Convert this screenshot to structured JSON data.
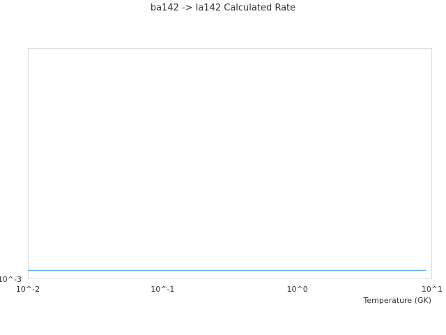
{
  "chart_data": {
    "type": "line",
    "title": "ba142 -> la142 Calculated Rate",
    "xlabel": "Temperature (GK)",
    "ylabel": "",
    "x_scale": "log",
    "y_scale": "log",
    "xlim": [
      0.01,
      10
    ],
    "ylim": [
      0.001,
      0.01
    ],
    "x_ticks": [
      "10^-2",
      "10^-1",
      "10^0",
      "10^1"
    ],
    "y_ticks": [
      "10^-3"
    ],
    "grid": false,
    "series": [
      {
        "color": "#4a9fe8",
        "x": [
          0.01,
          9
        ],
        "y": [
          0.00109,
          0.00109
        ]
      }
    ]
  }
}
